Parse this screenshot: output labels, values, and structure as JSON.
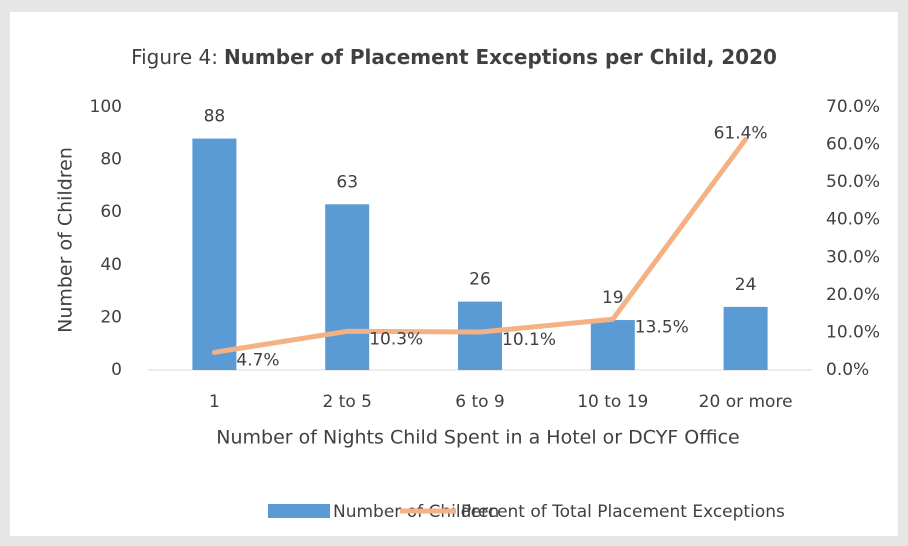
{
  "chart_data": {
    "type": "bar",
    "title_label": "Figure 4:",
    "title": "Number of Placement Exceptions per Child, 2020",
    "x_label": "Number of Nights Child Spent in a Hotel or DCYF Office",
    "y_label": "Number of Children",
    "categories": [
      "1",
      "2 to 5",
      "6 to 9",
      "10 to 19",
      "20 or more"
    ],
    "series": [
      {
        "name": "Number of Children",
        "type": "bar",
        "color": "#5b9bd5",
        "values": [
          88,
          63,
          26,
          19,
          24
        ]
      },
      {
        "name": "Percent of Total Placement Exceptions",
        "type": "line",
        "axis": "y2",
        "color": "#f4b183",
        "values": [
          4.7,
          10.3,
          10.1,
          13.5,
          61.4
        ],
        "value_labels": [
          "4.7%",
          "10.3%",
          "10.1%",
          "13.5%",
          "61.4%"
        ]
      }
    ],
    "ylim": [
      0,
      100
    ],
    "yticks": [
      0,
      20,
      40,
      60,
      80,
      100
    ],
    "y2lim": [
      0,
      70
    ],
    "y2ticks": [
      {
        "value": 0,
        "label": "0.0%"
      },
      {
        "value": 10,
        "label": "10.0%"
      },
      {
        "value": 20,
        "label": "20.0%"
      },
      {
        "value": 30,
        "label": "30.0%"
      },
      {
        "value": 40,
        "label": "40.0%"
      },
      {
        "value": 50,
        "label": "50.0%"
      },
      {
        "value": 60,
        "label": "60.0%"
      },
      {
        "value": 70,
        "label": "70.0%"
      }
    ],
    "grid": false,
    "legend": "bottom"
  }
}
